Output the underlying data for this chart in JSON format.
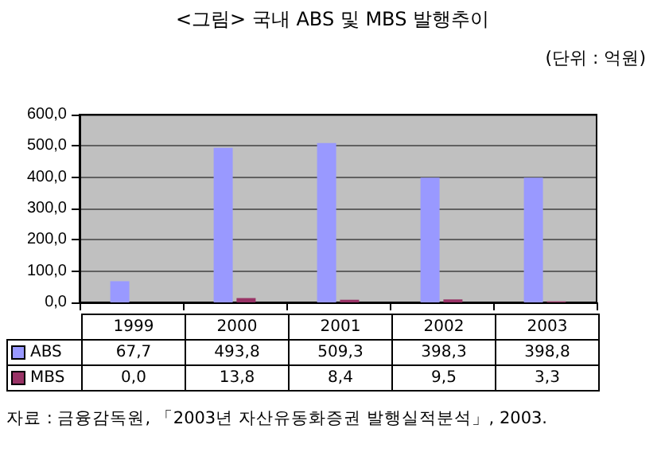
{
  "chart_data": {
    "type": "bar",
    "title": "<그림> 국내 ABS 및 MBS 발행추이",
    "subtitle": "(단위 : 억원)",
    "annotations": [
      "자료 : 금융감독원, 「2003년 자산유동화증권 발행실적분석」, 2003."
    ],
    "categories": [
      "1999",
      "2000",
      "2001",
      "2002",
      "2003"
    ],
    "series": [
      {
        "name": "ABS",
        "color": "#9999ff",
        "values": [
          67.7,
          493.8,
          509.3,
          398.3,
          398.8
        ],
        "value_labels": [
          "67,7",
          "493,8",
          "509,3",
          "398,3",
          "398,8"
        ]
      },
      {
        "name": "MBS",
        "color": "#993366",
        "values": [
          0.0,
          13.8,
          8.4,
          9.5,
          3.3
        ],
        "value_labels": [
          "0,0",
          "13,8",
          "8,4",
          "9,5",
          "3,3"
        ]
      }
    ],
    "ylim": [
      0,
      600
    ],
    "yticks": [
      {
        "value": 0,
        "label": "0,0"
      },
      {
        "value": 100,
        "label": "100,0"
      },
      {
        "value": 200,
        "label": "200,0"
      },
      {
        "value": 300,
        "label": "300,0"
      },
      {
        "value": 400,
        "label": "400,0"
      },
      {
        "value": 500,
        "label": "500,0"
      },
      {
        "value": 600,
        "label": "600,0"
      }
    ],
    "grid": "y",
    "legend": "bottom"
  }
}
